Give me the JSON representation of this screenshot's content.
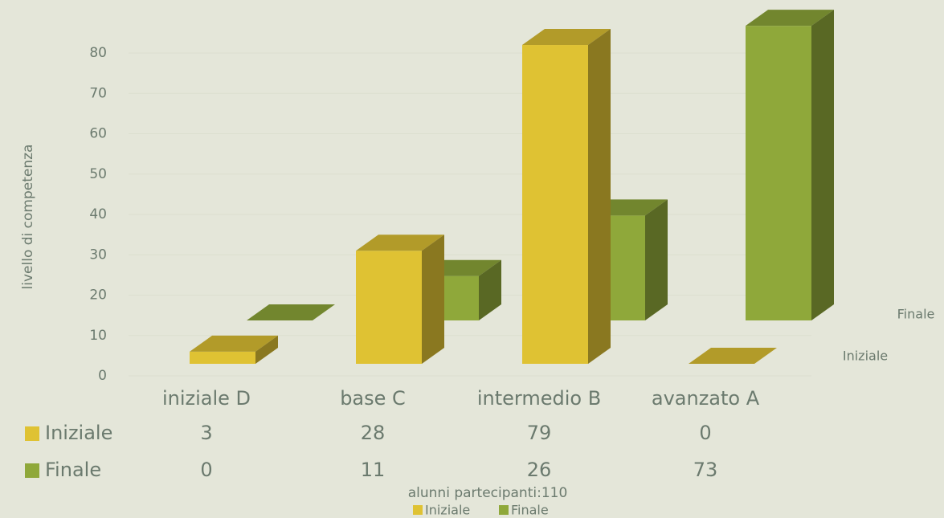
{
  "chart_data": {
    "type": "bar3d",
    "y_label": "livello di competenza",
    "x_label": "alunni partecipanti:110",
    "categories": [
      "iniziale D",
      "base C",
      "intermedio B",
      "avanzato A"
    ],
    "series": [
      {
        "name": "Iniziale",
        "color": "#dfc233",
        "values": [
          3,
          28,
          79,
          0
        ]
      },
      {
        "name": "Finale",
        "color": "#8fa83a",
        "values": [
          0,
          11,
          26,
          73
        ]
      }
    ],
    "ylim": [
      0,
      80
    ],
    "yticks": [
      0,
      10,
      20,
      30,
      40,
      50,
      60,
      70,
      80
    ],
    "grid": true
  }
}
